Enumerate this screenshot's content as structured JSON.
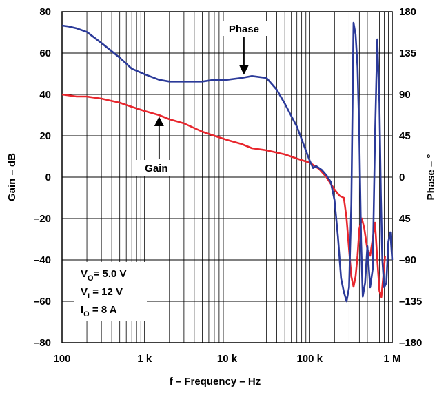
{
  "chart_data": {
    "type": "line",
    "xlabel": "f – Frequency – Hz",
    "ylabel": "Gain – dB",
    "y2label": "Phase – °",
    "x_scale": "log",
    "xlim": [
      100,
      1000000
    ],
    "ylim": [
      -80,
      80
    ],
    "y2lim": [
      -180,
      180
    ],
    "grid": true,
    "x_ticks": [
      {
        "value": 100,
        "label": "100"
      },
      {
        "value": 1000,
        "label": "1 k"
      },
      {
        "value": 10000,
        "label": "10 k"
      },
      {
        "value": 100000,
        "label": "100 k"
      },
      {
        "value": 1000000,
        "label": "1 M"
      }
    ],
    "y_ticks": [
      {
        "value": 80,
        "label": "80"
      },
      {
        "value": 60,
        "label": "60"
      },
      {
        "value": 40,
        "label": "40"
      },
      {
        "value": 20,
        "label": "20"
      },
      {
        "value": 0,
        "label": "0"
      },
      {
        "value": -20,
        "label": "–20"
      },
      {
        "value": -40,
        "label": "–40"
      },
      {
        "value": -60,
        "label": "–60"
      },
      {
        "value": -80,
        "label": "–80"
      }
    ],
    "y2_ticks": [
      {
        "value": 180,
        "label": "180"
      },
      {
        "value": 135,
        "label": "135"
      },
      {
        "value": 90,
        "label": "90"
      },
      {
        "value": 45,
        "label": "45"
      },
      {
        "value": 0,
        "label": "0"
      },
      {
        "value": -45,
        "label": "45"
      },
      {
        "value": -90,
        "label": "–90"
      },
      {
        "value": -135,
        "label": "–135"
      },
      {
        "value": -180,
        "label": "–180"
      }
    ],
    "series": [
      {
        "name": "Gain",
        "color": "#e8262d",
        "axis": "left",
        "x": [
          100,
          150,
          200,
          300,
          500,
          700,
          1000,
          1500,
          2000,
          3000,
          5000,
          7000,
          10000,
          15000,
          20000,
          30000,
          50000,
          70000,
          100000,
          130000,
          160000,
          200000,
          230000,
          260000,
          280000,
          300000,
          320000,
          340000,
          360000,
          380000,
          400000,
          430000,
          460000,
          500000,
          540000,
          580000,
          620000,
          660000,
          700000,
          740000,
          780000,
          820000
        ],
        "values": [
          40,
          39,
          39,
          38,
          36,
          34,
          32,
          30,
          28,
          26,
          22,
          20,
          18,
          16,
          14,
          13,
          11,
          9,
          7,
          4,
          0,
          -6,
          -9,
          -10,
          -20,
          -35,
          -48,
          -53,
          -48,
          -38,
          -25,
          -20,
          -25,
          -35,
          -38,
          -30,
          -22,
          -40,
          -55,
          -58,
          -48,
          -38
        ]
      },
      {
        "name": "Phase",
        "color": "#2b3a99",
        "axis": "right",
        "x": [
          100,
          120,
          150,
          200,
          300,
          500,
          700,
          1000,
          1500,
          2000,
          3000,
          5000,
          7000,
          10000,
          15000,
          20000,
          30000,
          40000,
          50000,
          70000,
          100000,
          110000,
          120000,
          140000,
          160000,
          180000,
          200000,
          220000,
          240000,
          260000,
          280000,
          300000,
          320000,
          340000,
          360000,
          380000,
          400000,
          420000,
          440000,
          470000,
          500000,
          540000,
          580000,
          620000,
          660000,
          700000,
          730000,
          760000,
          800000,
          850000,
          900000,
          950000,
          1000000
        ],
        "values": [
          165,
          164,
          162,
          158,
          146,
          130,
          118,
          112,
          106,
          104,
          104,
          104,
          106,
          106,
          108,
          110,
          108,
          95,
          80,
          55,
          18,
          10,
          12,
          8,
          2,
          -5,
          -25,
          -65,
          -110,
          -125,
          -135,
          -120,
          -30,
          168,
          155,
          120,
          45,
          -70,
          -130,
          -115,
          -75,
          -120,
          -100,
          45,
          150,
          80,
          -20,
          -90,
          -120,
          -115,
          -70,
          -60,
          -90
        ]
      }
    ],
    "annotations": [
      {
        "text": "Phase",
        "target_series": "Phase",
        "x": 16000,
        "y_right": 110
      },
      {
        "text": "Gain",
        "target_series": "Gain",
        "x": 1500,
        "y_left": 30
      }
    ],
    "conditions": [
      {
        "base": "V",
        "sub": "O",
        "rest": "= 5.0 V"
      },
      {
        "base": "V",
        "sub": "I",
        "rest": " = 12 V"
      },
      {
        "base": "I",
        "sub": "O",
        "rest": " = 8 A"
      }
    ]
  }
}
